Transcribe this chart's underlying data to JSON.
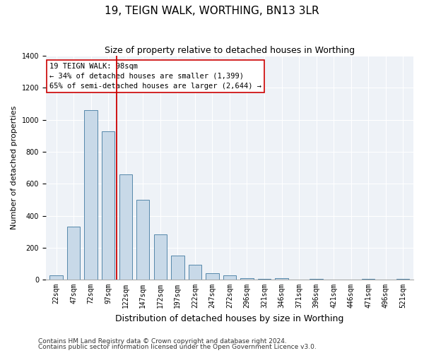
{
  "title": "19, TEIGN WALK, WORTHING, BN13 3LR",
  "subtitle": "Size of property relative to detached houses in Worthing",
  "xlabel": "Distribution of detached houses by size in Worthing",
  "ylabel": "Number of detached properties",
  "bar_labels": [
    "22sqm",
    "47sqm",
    "72sqm",
    "97sqm",
    "122sqm",
    "147sqm",
    "172sqm",
    "197sqm",
    "222sqm",
    "247sqm",
    "272sqm",
    "296sqm",
    "321sqm",
    "346sqm",
    "371sqm",
    "396sqm",
    "421sqm",
    "446sqm",
    "471sqm",
    "496sqm",
    "521sqm"
  ],
  "bar_values": [
    25,
    330,
    1060,
    930,
    660,
    500,
    285,
    150,
    95,
    40,
    25,
    10,
    5,
    10,
    0,
    5,
    0,
    0,
    5,
    0,
    5
  ],
  "bar_color": "#c8d9e8",
  "bar_edge_color": "#5588aa",
  "background_color": "#eef2f7",
  "annotation_text": "19 TEIGN WALK: 98sqm\n← 34% of detached houses are smaller (1,399)\n65% of semi-detached houses are larger (2,644) →",
  "vline_color": "#cc0000",
  "annotation_box_color": "#ffffff",
  "annotation_box_edge_color": "#cc0000",
  "ylim": [
    0,
    1400
  ],
  "yticks": [
    0,
    200,
    400,
    600,
    800,
    1000,
    1200,
    1400
  ],
  "footnote1": "Contains HM Land Registry data © Crown copyright and database right 2024.",
  "footnote2": "Contains public sector information licensed under the Open Government Licence v3.0.",
  "title_fontsize": 11,
  "subtitle_fontsize": 9,
  "xlabel_fontsize": 9,
  "ylabel_fontsize": 8,
  "tick_fontsize": 7,
  "annotation_fontsize": 7.5,
  "footnote_fontsize": 6.5
}
